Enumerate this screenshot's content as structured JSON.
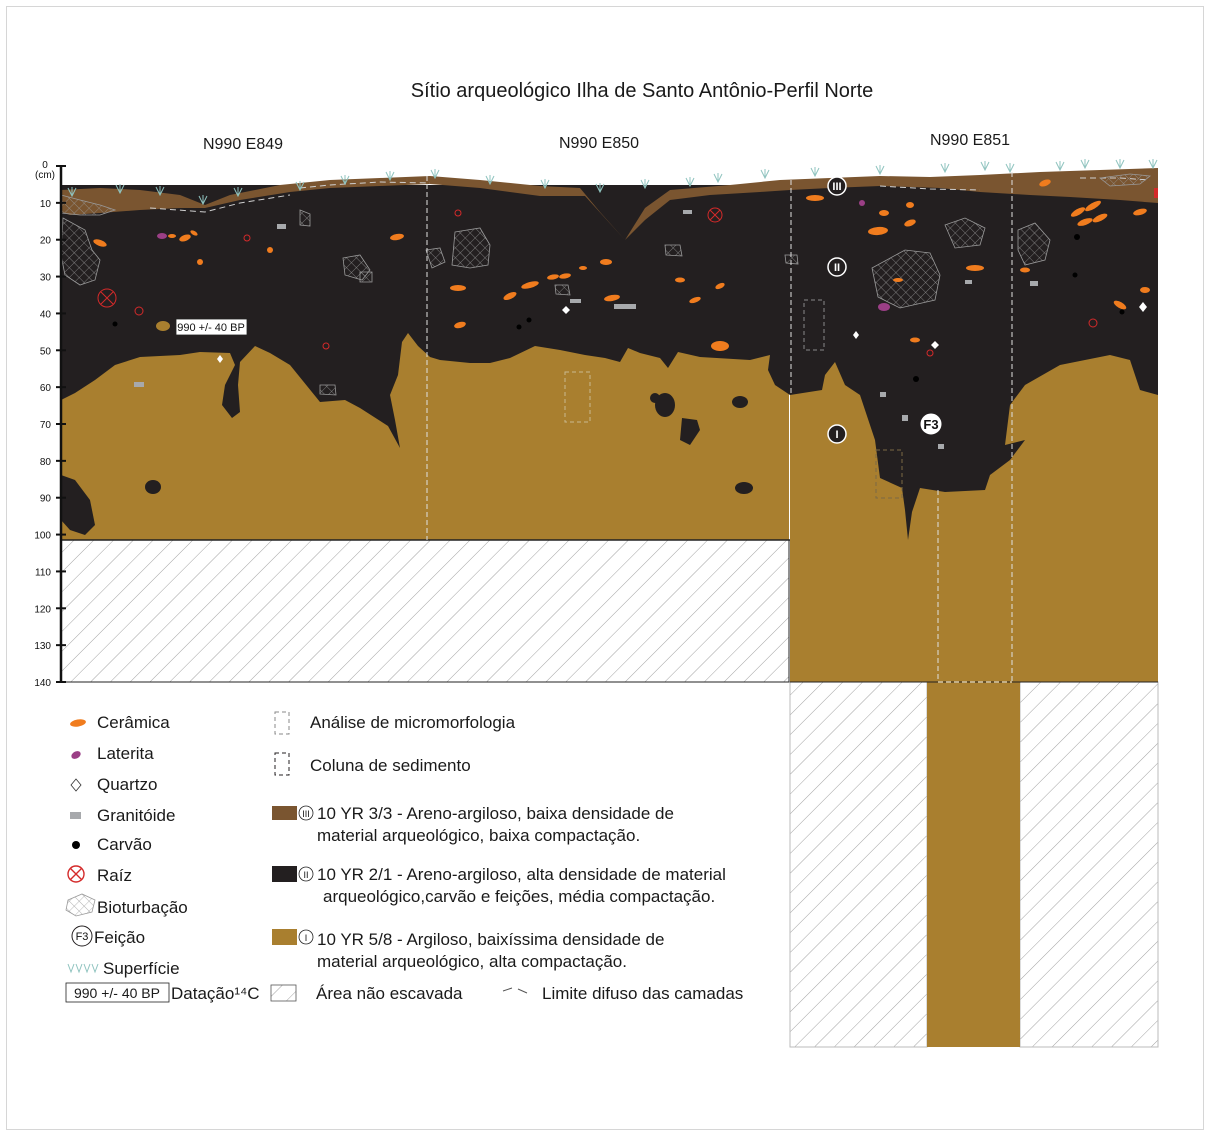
{
  "figure": {
    "title": "Sítio arqueológico Ilha de Santo Antônio-Perfil Norte",
    "units": [
      "N990 E849",
      "N990 E850",
      "N990 E851"
    ],
    "depth_unit": "(cm)",
    "depth_ticks": [
      "0",
      "10",
      "20",
      "30",
      "40",
      "50",
      "60",
      "70",
      "80",
      "90",
      "100",
      "110",
      "120",
      "130",
      "140"
    ],
    "dating_label": "990 +/- 40 BP",
    "layer_labels": [
      "III",
      "II",
      "I"
    ],
    "feature_label": "F3"
  },
  "legend": {
    "symbols": [
      {
        "icon": "ceramic-icon",
        "label": "Cerâmica"
      },
      {
        "icon": "laterite-icon",
        "label": "Laterita"
      },
      {
        "icon": "quartz-icon",
        "label": "Quartzo"
      },
      {
        "icon": "granitoid-icon",
        "label": "Granitóide"
      },
      {
        "icon": "charcoal-icon",
        "label": "Carvão"
      },
      {
        "icon": "root-icon",
        "label": "Raíz"
      },
      {
        "icon": "bioturbation-icon",
        "label": "Bioturbação"
      },
      {
        "icon": "feature-icon",
        "label": "Feição"
      },
      {
        "icon": "surface-icon",
        "label": "Superfície"
      }
    ],
    "dating": {
      "box": "990 +/- 40 BP",
      "label": "Datação¹⁴C"
    },
    "sampling": [
      {
        "icon": "micromorphology-icon",
        "label": "Análise de micromorfologia"
      },
      {
        "icon": "sediment-column-icon",
        "label": "Coluna de sedimento"
      }
    ],
    "layers": [
      {
        "roman": "III",
        "color": "#7a5530",
        "line1": "10 YR 3/3 - Areno-argiloso, baixa densidade de",
        "line2": "material arqueológico, baixa compactação."
      },
      {
        "roman": "II",
        "color": "#231f20",
        "line1": "10 YR 2/1 - Areno-argiloso, alta densidade de material",
        "line2": "arqueológico,carvão e feições, média compactação."
      },
      {
        "roman": "I",
        "color": "#a97f2f",
        "line1": "10 YR 5/8 - Argiloso, baixíssima  densidade de",
        "line2": "material arqueológico, alta compactação."
      }
    ],
    "not_excavated": "Área não escavada",
    "diffuse_limit": "Limite difuso das camadas"
  },
  "colors": {
    "layer_III": "#7a5530",
    "layer_II": "#231f20",
    "layer_I": "#a97f2f",
    "ceramic": "#f07c1e",
    "laterite": "#9b3f86",
    "root": "#d42a2a",
    "granitoid": "#a7a9ac",
    "surface_grass": "#8fc3bf"
  }
}
